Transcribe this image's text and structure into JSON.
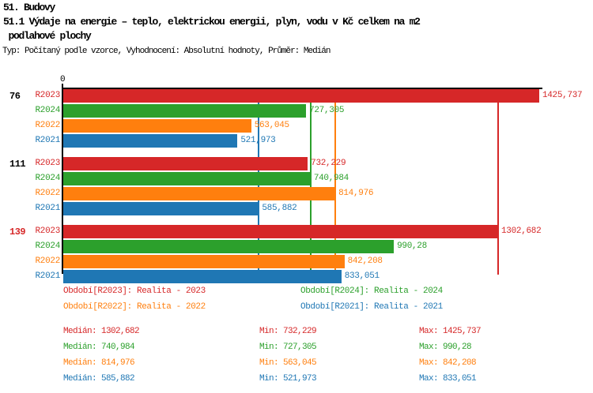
{
  "header": {
    "line1": "51. Budovy",
    "line2": "51.1 Výdaje na energie – teplo, elektrickou energii, plyn, vodu v Kč celkem na m2",
    "line3": " podlahové plochy",
    "meta": "Typ: Počítaný podle vzorce, Vyhodnocení: Absolutní hodnoty, Průměr: Medián"
  },
  "colors": {
    "red": "#d62728",
    "green": "#2ca02c",
    "orange": "#ff7f0e",
    "blue": "#1f77b4",
    "black": "#000000",
    "axis": "#000000"
  },
  "chart_data": {
    "type": "bar",
    "orientation": "horizontal",
    "value_axis": {
      "min": 0,
      "max": 1432,
      "origin_tick_label": "0",
      "grid": false
    },
    "series_legend_position": "bottom",
    "groups": [
      {
        "label": "76",
        "label_color_key": "black",
        "bars": [
          {
            "series": "R2023",
            "value": 1425.737,
            "display": "1425,737",
            "color_key": "red"
          },
          {
            "series": "R2024",
            "value": 727.305,
            "display": "727,305",
            "color_key": "green"
          },
          {
            "series": "R2022",
            "value": 563.045,
            "display": "563,045",
            "color_key": "orange"
          },
          {
            "series": "R2021",
            "value": 521.973,
            "display": "521,973",
            "color_key": "blue"
          }
        ]
      },
      {
        "label": "111",
        "label_color_key": "black",
        "bars": [
          {
            "series": "R2023",
            "value": 732.229,
            "display": "732,229",
            "color_key": "red"
          },
          {
            "series": "R2024",
            "value": 740.984,
            "display": "740,984",
            "color_key": "green"
          },
          {
            "series": "R2022",
            "value": 814.976,
            "display": "814,976",
            "color_key": "orange"
          },
          {
            "series": "R2021",
            "value": 585.882,
            "display": "585,882",
            "color_key": "blue"
          }
        ]
      },
      {
        "label": "139",
        "label_color_key": "red",
        "bars": [
          {
            "series": "R2023",
            "value": 1302.682,
            "display": "1302,682",
            "color_key": "red"
          },
          {
            "series": "R2024",
            "value": 990.28,
            "display": "990,28",
            "color_key": "green"
          },
          {
            "series": "R2022",
            "value": 842.208,
            "display": "842,208",
            "color_key": "orange"
          },
          {
            "series": "R2021",
            "value": 833.051,
            "display": "833,051",
            "color_key": "blue"
          }
        ]
      }
    ],
    "median_lines": [
      {
        "color_key": "red",
        "value": 1302.682
      },
      {
        "color_key": "green",
        "value": 740.984
      },
      {
        "color_key": "orange",
        "value": 814.976
      },
      {
        "color_key": "blue",
        "value": 585.882
      }
    ],
    "legend_rows": [
      [
        {
          "text": "Období[R2023]: Realita - 2023",
          "color_key": "red"
        },
        {
          "text": "Období[R2024]: Realita - 2024",
          "color_key": "green"
        }
      ],
      [
        {
          "text": "Období[R2022]: Realita - 2022",
          "color_key": "orange"
        },
        {
          "text": "Období[R2021]: Realita - 2021",
          "color_key": "blue"
        }
      ]
    ],
    "stats_rows": [
      {
        "color_key": "red",
        "cells": [
          "Medián: 1302,682",
          "Min: 732,229",
          "Max: 1425,737"
        ]
      },
      {
        "color_key": "green",
        "cells": [
          "Medián: 740,984",
          "Min: 727,305",
          "Max: 990,28"
        ]
      },
      {
        "color_key": "orange",
        "cells": [
          "Medián: 814,976",
          "Min: 563,045",
          "Max: 842,208"
        ]
      },
      {
        "color_key": "blue",
        "cells": [
          "Medián: 585,882",
          "Min: 521,973",
          "Max: 833,051"
        ]
      }
    ]
  }
}
